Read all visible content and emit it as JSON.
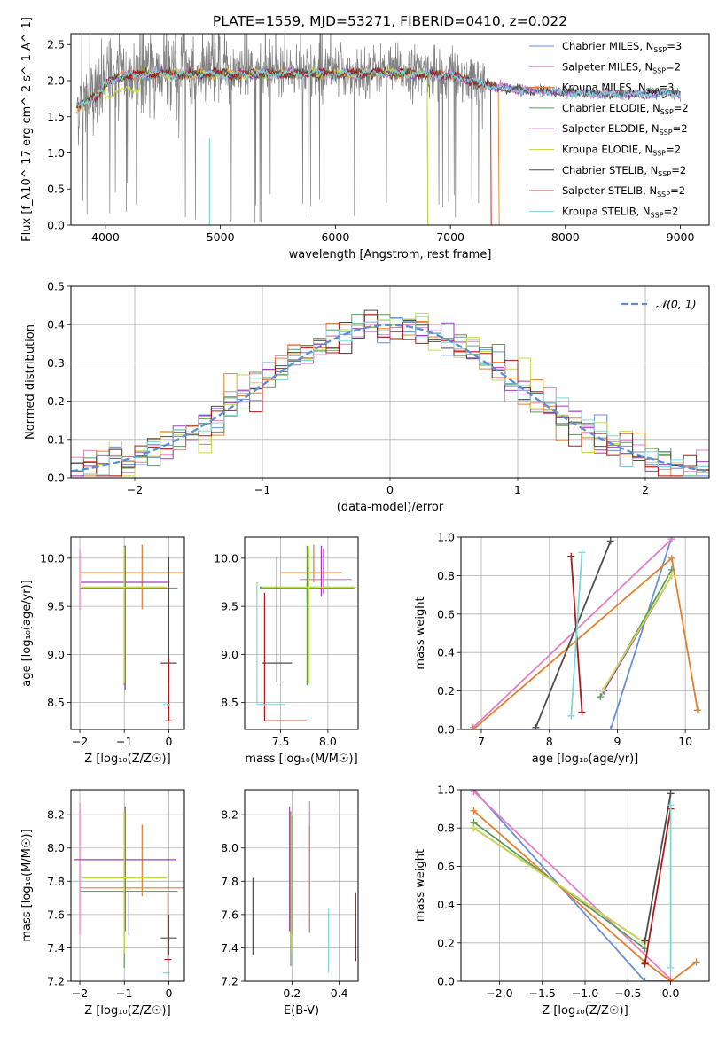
{
  "figure_title": "PLATE=1559, MJD=53271, FIBERID=0410, z=0.022",
  "colors": {
    "Chabrier MILES": "#6a8fd4",
    "Salpeter MILES": "#e57fc1",
    "Kroupa MILES": "#e57f2c",
    "Chabrier ELODIE": "#5c9a5c",
    "Salpeter ELODIE": "#a23fbf",
    "Kroupa ELODIE": "#c8d94a",
    "Chabrier STELIB": "#4d4d4d",
    "Salpeter STELIB": "#b01818",
    "Kroupa STELIB": "#7fd6d6"
  },
  "chart_data": [
    {
      "id": "spectrum",
      "type": "line",
      "xlabel": "wavelength [Angstrom, rest frame]",
      "ylabel": "Flux [f_λ10^-17 erg cm^-2 s^-1 A^-1]",
      "xlim": [
        3700,
        9250
      ],
      "ylim": [
        0,
        2.65
      ],
      "xticks": [
        4000,
        5000,
        6000,
        7000,
        8000,
        9000
      ],
      "yticks": [
        0.0,
        0.5,
        1.0,
        1.5,
        2.0,
        2.5
      ],
      "legend_position": "upper-right",
      "data_range_angstrom": [
        3750,
        9000
      ],
      "legend": [
        {
          "label": "Chabrier MILES, N",
          "sub": "SSP",
          "suffix": "=3",
          "color": "#6a8fd4"
        },
        {
          "label": "Salpeter MILES, N",
          "sub": "SSP",
          "suffix": "=2",
          "color": "#e57fc1"
        },
        {
          "label": "Kroupa MILES, N",
          "sub": "SSP",
          "suffix": "=3",
          "color": "#e57f2c"
        },
        {
          "label": "Chabrier ELODIE, N",
          "sub": "SSP",
          "suffix": "=2",
          "color": "#5c9a5c"
        },
        {
          "label": "Salpeter ELODIE, N",
          "sub": "SSP",
          "suffix": "=2",
          "color": "#a23fbf"
        },
        {
          "label": "Kroupa ELODIE, N",
          "sub": "SSP",
          "suffix": "=2",
          "color": "#c8d94a"
        },
        {
          "label": "Chabrier STELIB, N",
          "sub": "SSP",
          "suffix": "=2",
          "color": "#4d4d4d"
        },
        {
          "label": "Salpeter STELIB, N",
          "sub": "SSP",
          "suffix": "=2",
          "color": "#b01818"
        },
        {
          "label": "Kroupa STELIB, N",
          "sub": "SSP",
          "suffix": "=2",
          "color": "#7fd6d6"
        }
      ],
      "continuum": {
        "x": [
          3750,
          3850,
          3950,
          4000,
          4100,
          4200,
          4300,
          4400,
          4500,
          4600,
          4700,
          4800,
          4900,
          5000,
          5200,
          5400,
          5600,
          5800,
          6000,
          6200,
          6400,
          6600,
          6800,
          7000,
          7200,
          7400,
          7600,
          7800,
          8000,
          8200,
          8400,
          8600,
          8800,
          9000
        ],
        "y": [
          1.65,
          1.75,
          1.85,
          2.0,
          2.07,
          2.1,
          2.12,
          2.13,
          2.13,
          2.12,
          2.12,
          2.11,
          2.12,
          2.12,
          2.12,
          2.13,
          2.13,
          2.13,
          2.12,
          2.13,
          2.14,
          2.13,
          2.12,
          2.1,
          2.02,
          1.93,
          1.9,
          1.88,
          1.86,
          1.85,
          1.84,
          1.83,
          1.84,
          1.85
        ]
      },
      "model_ends": {
        "Kroupa ELODIE": 6800,
        "Kroupa MILES": 7420,
        "Salpeter STELIB": 7350,
        "Chabrier ELODIE": 6800
      }
    },
    {
      "id": "residuals",
      "type": "histogram",
      "xlabel": "(data-model)/error",
      "ylabel": "Normed distribution",
      "xlim": [
        -2.5,
        2.5
      ],
      "ylim": [
        0,
        0.5
      ],
      "xticks": [
        -2,
        -1,
        0,
        1,
        2
      ],
      "yticks": [
        0.0,
        0.1,
        0.2,
        0.3,
        0.4,
        0.5
      ],
      "grid": true,
      "legend_position": "upper-right",
      "legend": [
        {
          "label": "𝒩(0, 1)",
          "color": "#5b8ed6",
          "style": "dashed"
        }
      ],
      "bin_width": 0.1
    },
    {
      "id": "age-vs-Z",
      "type": "scatter",
      "xlabel": "Z [log₁₀(Z/Z☉)]",
      "ylabel": "age  [log₁₀(age/yr)]",
      "xlim": [
        -2.2,
        0.35
      ],
      "ylim": [
        8.22,
        10.22
      ],
      "xticks": [
        -2,
        -1,
        0
      ],
      "yticks": [
        8.5,
        9.0,
        9.5,
        10.0
      ],
      "grid": true,
      "errorbars": [
        {
          "model": "Chabrier MILES",
          "x": -0.9,
          "xerr": [
            1.1,
            1.1
          ],
          "y": 9.69,
          "yerr": [
            0.0,
            0.0
          ]
        },
        {
          "model": "Salpeter MILES",
          "x": -2.0,
          "xerr": [
            0.0,
            0.0
          ],
          "y": 9.78,
          "yerr": [
            0.32,
            0.32
          ]
        },
        {
          "model": "Kroupa MILES",
          "x": -0.6,
          "xerr": [
            1.4,
            1.4
          ],
          "y": 9.85,
          "yerr": [
            0.38,
            0.29
          ]
        },
        {
          "model": "Chabrier ELODIE",
          "x": -1.0,
          "xerr": [
            0.95,
            0.95
          ],
          "y": 9.7,
          "yerr": [
            1.02,
            0.43
          ]
        },
        {
          "model": "Salpeter ELODIE",
          "x": -0.98,
          "xerr": [
            1.0,
            1.0
          ],
          "y": 9.75,
          "yerr": [
            1.12,
            0.38
          ]
        },
        {
          "model": "Kroupa ELODIE",
          "x": -1.0,
          "xerr": [
            0.95,
            0.95
          ],
          "y": 9.7,
          "yerr": [
            1.0,
            0.42
          ]
        },
        {
          "model": "Chabrier STELIB",
          "x": 0.0,
          "xerr": [
            0.18,
            0.18
          ],
          "y": 8.91,
          "yerr": [
            0.2,
            1.1
          ]
        },
        {
          "model": "Salpeter STELIB",
          "x": 0.0,
          "xerr": [
            0.08,
            0.08
          ],
          "y": 8.31,
          "yerr": [
            0.0,
            0.65
          ]
        },
        {
          "model": "Kroupa STELIB",
          "x": -0.05,
          "xerr": [
            0.08,
            0.08
          ],
          "y": 8.48,
          "yerr": [
            0.0,
            0.0
          ]
        }
      ]
    },
    {
      "id": "age-vs-mass",
      "type": "scatter",
      "xlabel": "mass [log₁₀(M/M☉)]",
      "ylabel": "",
      "xlim": [
        7.12,
        8.32
      ],
      "ylim": [
        8.22,
        10.22
      ],
      "xticks": [
        7.5,
        8.0
      ],
      "yticks": [
        8.5,
        9.0,
        9.5,
        10.0
      ],
      "grid": true,
      "errorbars": [
        {
          "model": "Chabrier MILES",
          "x": 7.78,
          "xerr": [
            0.5,
            0.5
          ],
          "y": 9.69,
          "yerr": [
            0.1,
            0.1
          ]
        },
        {
          "model": "Salpeter MILES",
          "x": 7.95,
          "xerr": [
            0.25,
            0.3
          ],
          "y": 9.78,
          "yerr": [
            0.15,
            0.32
          ]
        },
        {
          "model": "Kroupa MILES",
          "x": 7.85,
          "xerr": [
            0.35,
            0.3
          ],
          "y": 9.85,
          "yerr": [
            0.1,
            0.29
          ]
        },
        {
          "model": "Chabrier ELODIE",
          "x": 7.78,
          "xerr": [
            0.5,
            0.5
          ],
          "y": 9.7,
          "yerr": [
            1.02,
            0.43
          ]
        },
        {
          "model": "Salpeter ELODIE",
          "x": 7.93,
          "xerr": [
            0.0,
            0.0
          ],
          "y": 9.75,
          "yerr": [
            0.15,
            0.38
          ]
        },
        {
          "model": "Kroupa ELODIE",
          "x": 7.8,
          "xerr": [
            0.5,
            0.5
          ],
          "y": 9.7,
          "yerr": [
            1.0,
            0.42
          ]
        },
        {
          "model": "Chabrier STELIB",
          "x": 7.46,
          "xerr": [
            0.16,
            0.16
          ],
          "y": 8.91,
          "yerr": [
            0.2,
            1.1
          ]
        },
        {
          "model": "Salpeter STELIB",
          "x": 7.33,
          "xerr": [
            0.0,
            0.45
          ],
          "y": 8.31,
          "yerr": [
            0.0,
            1.33
          ]
        },
        {
          "model": "Kroupa STELIB",
          "x": 7.25,
          "xerr": [
            0.0,
            0.3
          ],
          "y": 8.48,
          "yerr": [
            0.0,
            1.27
          ]
        }
      ]
    },
    {
      "id": "weight-vs-age",
      "type": "line",
      "xlabel": "age  [log₁₀(age/yr)]",
      "ylabel": "mass weight",
      "xlim": [
        6.7,
        10.35
      ],
      "ylim": [
        0,
        1.0
      ],
      "xticks": [
        7,
        8,
        9,
        10
      ],
      "yticks": [
        0.0,
        0.2,
        0.4,
        0.6,
        0.8,
        1.0
      ],
      "grid": true,
      "series": [
        {
          "model": "Chabrier MILES",
          "x": [
            6.88,
            8.9,
            9.8
          ],
          "y": [
            0.0,
            0.0,
            1.0
          ]
        },
        {
          "model": "Salpeter MILES",
          "x": [
            6.88,
            9.8
          ],
          "y": [
            0.01,
            0.99
          ]
        },
        {
          "model": "Kroupa MILES",
          "x": [
            6.88,
            9.8,
            10.18
          ],
          "y": [
            0.0,
            0.89,
            0.1
          ]
        },
        {
          "model": "Chabrier ELODIE",
          "x": [
            8.75,
            9.8
          ],
          "y": [
            0.17,
            0.83
          ]
        },
        {
          "model": "Salpeter ELODIE",
          "x": [
            8.8,
            9.8
          ],
          "y": [
            0.2,
            0.8
          ]
        },
        {
          "model": "Kroupa ELODIE",
          "x": [
            8.78,
            9.8
          ],
          "y": [
            0.2,
            0.8
          ]
        },
        {
          "model": "Chabrier STELIB",
          "x": [
            7.8,
            8.9
          ],
          "y": [
            0.01,
            0.98
          ]
        },
        {
          "model": "Salpeter STELIB",
          "x": [
            8.32,
            8.48
          ],
          "y": [
            0.9,
            0.09
          ]
        },
        {
          "model": "Kroupa STELIB",
          "x": [
            8.32,
            8.48
          ],
          "y": [
            0.07,
            0.92
          ]
        }
      ]
    },
    {
      "id": "mass-vs-Z",
      "type": "scatter",
      "xlabel": "Z [log₁₀(Z/Z☉)]",
      "ylabel": "mass [log₁₀(M/M☉)]",
      "xlim": [
        -2.2,
        0.35
      ],
      "ylim": [
        7.2,
        8.35
      ],
      "xticks": [
        -2,
        -1,
        0
      ],
      "yticks": [
        7.2,
        7.4,
        7.6,
        7.8,
        8.0,
        8.2
      ],
      "grid": true,
      "errorbars": [
        {
          "model": "Chabrier MILES",
          "x": -0.9,
          "xerr": [
            1.1,
            1.1
          ],
          "y": 7.74,
          "yerr": [
            0.26,
            0.0
          ]
        },
        {
          "model": "Salpeter MILES",
          "x": -2.0,
          "xerr": [
            0.0,
            0.0
          ],
          "y": 7.82,
          "yerr": [
            0.34,
            0.45
          ]
        },
        {
          "model": "Kroupa MILES",
          "x": -0.6,
          "xerr": [
            1.4,
            1.4
          ],
          "y": 7.76,
          "yerr": [
            0.05,
            0.38
          ]
        },
        {
          "model": "Chabrier ELODIE",
          "x": -1.0,
          "xerr": [
            0.95,
            0.95
          ],
          "y": 7.82,
          "yerr": [
            0.54,
            0.4
          ]
        },
        {
          "model": "Salpeter ELODIE",
          "x": -0.98,
          "xerr": [
            1.15,
            1.15
          ],
          "y": 7.93,
          "yerr": [
            0.43,
            0.32
          ]
        },
        {
          "model": "Kroupa ELODIE",
          "x": -1.0,
          "xerr": [
            0.95,
            0.95
          ],
          "y": 7.82,
          "yerr": [
            0.45,
            0.4
          ]
        },
        {
          "model": "Chabrier STELIB",
          "x": 0.0,
          "xerr": [
            0.18,
            0.18
          ],
          "y": 7.46,
          "yerr": [
            0.1,
            0.14
          ]
        },
        {
          "model": "Salpeter STELIB",
          "x": -0.02,
          "xerr": [
            0.08,
            0.08
          ],
          "y": 7.33,
          "yerr": [
            0.0,
            0.4
          ]
        },
        {
          "model": "Kroupa STELIB",
          "x": -0.05,
          "xerr": [
            0.08,
            0.08
          ],
          "y": 7.25,
          "yerr": [
            0.0,
            0.0
          ]
        }
      ]
    },
    {
      "id": "mass-vs-EBV",
      "type": "scatter",
      "xlabel": "E(B-V)",
      "ylabel": "",
      "xlim": [
        0.0,
        0.48
      ],
      "ylim": [
        7.2,
        8.35
      ],
      "xticks": [
        0.2,
        0.4
      ],
      "yticks": [
        7.2,
        7.4,
        7.6,
        7.8,
        8.0,
        8.2
      ],
      "grid": true,
      "errorbars": [
        {
          "model": "Chabrier MILES",
          "x": 0.2,
          "xerr": [
            0,
            0
          ],
          "y": 7.74,
          "yerr": [
            0.26,
            0.45
          ]
        },
        {
          "model": "Salpeter MILES",
          "x": 0.275,
          "xerr": [
            0,
            0
          ],
          "y": 7.82,
          "yerr": [
            0.33,
            0.46
          ]
        },
        {
          "model": "Kroupa MILES",
          "x": 0.275,
          "xerr": [
            0,
            0
          ],
          "y": 7.76,
          "yerr": [
            0.27,
            0.37
          ]
        },
        {
          "model": "Chabrier ELODIE",
          "x": 0.195,
          "xerr": [
            0,
            0
          ],
          "y": 7.82,
          "yerr": [
            0.53,
            0.4
          ]
        },
        {
          "model": "Salpeter ELODIE",
          "x": 0.19,
          "xerr": [
            0,
            0
          ],
          "y": 7.93,
          "yerr": [
            0.43,
            0.32
          ]
        },
        {
          "model": "Kroupa ELODIE",
          "x": 0.198,
          "xerr": [
            0,
            0
          ],
          "y": 7.82,
          "yerr": [
            0.44,
            0.4
          ]
        },
        {
          "model": "Chabrier STELIB",
          "x": 0.035,
          "xerr": [
            0,
            0
          ],
          "y": 7.6,
          "yerr": [
            0.24,
            0.22
          ]
        },
        {
          "model": "Salpeter STELIB",
          "x": 0.47,
          "xerr": [
            0,
            0
          ],
          "y": 7.52,
          "yerr": [
            0.2,
            0.21
          ]
        },
        {
          "model": "Kroupa STELIB",
          "x": 0.355,
          "xerr": [
            0,
            0
          ],
          "y": 7.45,
          "yerr": [
            0.2,
            0.19
          ]
        }
      ]
    },
    {
      "id": "weight-vs-Z",
      "type": "line",
      "xlabel": "Z [log₁₀(Z/Z☉)]",
      "ylabel": "mass weight",
      "xlim": [
        -2.45,
        0.45
      ],
      "ylim": [
        0,
        1.0
      ],
      "xticks": [
        -2.0,
        -1.5,
        -1.0,
        -0.5,
        0.0
      ],
      "yticks": [
        0.0,
        0.2,
        0.4,
        0.6,
        0.8,
        1.0
      ],
      "grid": true,
      "series": [
        {
          "model": "Chabrier MILES",
          "x": [
            -2.3,
            -0.3,
            0.0
          ],
          "y": [
            1.0,
            0.0,
            0.0
          ]
        },
        {
          "model": "Salpeter MILES",
          "x": [
            -2.3,
            0.0
          ],
          "y": [
            0.99,
            0.01
          ]
        },
        {
          "model": "Kroupa MILES",
          "x": [
            -2.3,
            -0.3,
            0.0,
            0.3
          ],
          "y": [
            0.89,
            0.1,
            0.0,
            0.1
          ]
        },
        {
          "model": "Chabrier ELODIE",
          "x": [
            -2.3,
            -0.3
          ],
          "y": [
            0.83,
            0.17
          ]
        },
        {
          "model": "Salpeter ELODIE",
          "x": [
            -2.3,
            -0.3
          ],
          "y": [
            0.8,
            0.2
          ]
        },
        {
          "model": "Kroupa ELODIE",
          "x": [
            -2.3,
            -0.3
          ],
          "y": [
            0.8,
            0.2
          ]
        },
        {
          "model": "Chabrier STELIB",
          "x": [
            -0.3,
            0.0
          ],
          "y": [
            0.21,
            0.98
          ]
        },
        {
          "model": "Salpeter STELIB",
          "x": [
            -0.3,
            0.0
          ],
          "y": [
            0.09,
            0.9
          ]
        },
        {
          "model": "Kroupa STELIB",
          "x": [
            0.0,
            0.0
          ],
          "y": [
            0.07,
            0.92
          ]
        }
      ]
    }
  ]
}
